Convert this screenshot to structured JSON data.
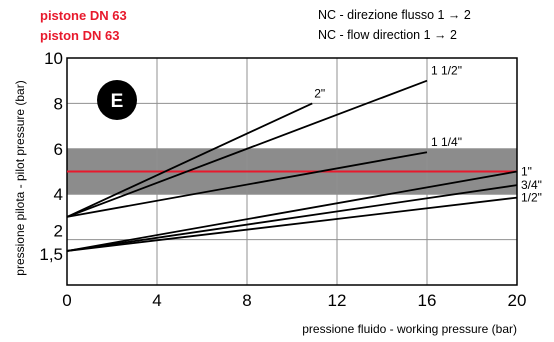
{
  "header": {
    "piston_it": "pistone DN 63",
    "piston_en": "piston   DN 63",
    "nc_it": "NC - direzione flusso  1 → 2",
    "nc_en": "NC - flow direction     1 → 2"
  },
  "colors": {
    "red": "#e8192c",
    "band": "#8c8c8c",
    "grid": "#909090",
    "curve": "#000000",
    "badge": "#000000"
  },
  "chart_data": {
    "type": "line",
    "badge": "E",
    "xlabel": "pressione fluido - working pressure (bar)",
    "ylabel": "pressione pilota - pilot pressure (bar)",
    "xlim": [
      0,
      20
    ],
    "ylim": [
      0,
      10
    ],
    "x_ticks": [
      0,
      4,
      8,
      12,
      16,
      20
    ],
    "y_ticks": [
      {
        "value": 1.5,
        "label": "1,5"
      },
      {
        "value": 2,
        "label": "2"
      },
      {
        "value": 4,
        "label": "4"
      },
      {
        "value": 6,
        "label": "6"
      },
      {
        "value": 8,
        "label": "8"
      },
      {
        "value": 10,
        "label": "10"
      }
    ],
    "grid": true,
    "band": {
      "y_from": 4,
      "y_to": 6
    },
    "reference_line": {
      "y": 5
    },
    "series": [
      {
        "name": "2\"",
        "x": [
          0,
          10.9
        ],
        "y": [
          3,
          8.0
        ]
      },
      {
        "name": "1 1/2\"",
        "x": [
          0,
          16
        ],
        "y": [
          3,
          9.0
        ]
      },
      {
        "name": "1 1/4\"",
        "x": [
          0,
          16
        ],
        "y": [
          3,
          5.85
        ]
      },
      {
        "name": "1\"",
        "x": [
          0,
          20
        ],
        "y": [
          1.5,
          5.0
        ]
      },
      {
        "name": "3/4\"",
        "x": [
          0,
          20
        ],
        "y": [
          1.5,
          4.4
        ]
      },
      {
        "name": "1/2\"",
        "x": [
          0,
          20
        ],
        "y": [
          1.5,
          3.85
        ]
      }
    ]
  }
}
